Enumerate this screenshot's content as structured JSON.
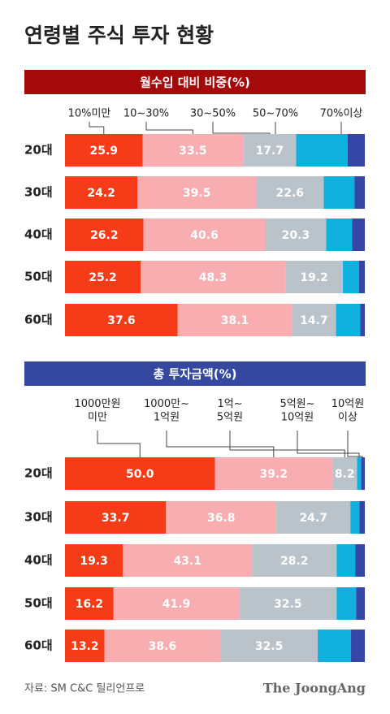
{
  "title": "연령별 주식 투자 현황",
  "source": "자료: SM C&C 틸리언프로",
  "brand": "The JoongAng",
  "chart_data": [
    {
      "type": "bar",
      "orientation": "horizontal",
      "stacked": true,
      "title": "월수입 대비 비중(%)",
      "header_color": "#a50a0a",
      "xlim": [
        0,
        100
      ],
      "categories": [
        "20대",
        "30대",
        "40대",
        "50대",
        "60대"
      ],
      "series": [
        {
          "name": "10%미만",
          "color": "#f53b18",
          "show_labels": true,
          "values": [
            25.9,
            24.2,
            26.2,
            25.2,
            37.6
          ]
        },
        {
          "name": "10~30%",
          "color": "#f8aeb0",
          "show_labels": true,
          "values": [
            33.5,
            39.5,
            40.6,
            48.3,
            38.1
          ]
        },
        {
          "name": "30~50%",
          "color": "#b9c3c9",
          "show_labels": true,
          "values": [
            17.7,
            22.6,
            20.3,
            19.2,
            14.7
          ]
        },
        {
          "name": "50~70%",
          "color": "#0fb0de",
          "show_labels": false,
          "values": [
            17.2,
            10.3,
            8.7,
            5.4,
            8.1
          ]
        },
        {
          "name": "70%이상",
          "color": "#3546a6",
          "show_labels": false,
          "values": [
            5.7,
            3.4,
            4.2,
            1.9,
            1.5
          ]
        }
      ]
    },
    {
      "type": "bar",
      "orientation": "horizontal",
      "stacked": true,
      "title": "총 투자금액(%)",
      "header_color": "#3548a0",
      "xlim": [
        0,
        100
      ],
      "categories": [
        "20대",
        "30대",
        "40대",
        "50대",
        "60대"
      ],
      "series": [
        {
          "name": "1000만원\n미만",
          "color": "#f53b18",
          "show_labels": true,
          "values": [
            50,
            33.7,
            19.3,
            16.2,
            13.2
          ],
          "value_labels": [
            "50.0",
            "33.7",
            "19.3",
            "16.2",
            "13.2"
          ]
        },
        {
          "name": "1000만~\n1억원",
          "color": "#f8aeb0",
          "show_labels": true,
          "values": [
            39.2,
            36.8,
            43.1,
            41.9,
            38.6
          ]
        },
        {
          "name": "1억~\n5억원",
          "color": "#b9c3c9",
          "show_labels": true,
          "values": [
            8.2,
            24.7,
            28.2,
            32.5,
            32.5
          ]
        },
        {
          "name": "5억원~\n10억원",
          "color": "#0fb0de",
          "show_labels": false,
          "values": [
            1.4,
            3.0,
            6.2,
            6.5,
            11.1
          ]
        },
        {
          "name": "10억원\n이상",
          "color": "#3546a6",
          "show_labels": false,
          "values": [
            1.2,
            1.8,
            3.2,
            2.9,
            4.6
          ]
        }
      ]
    }
  ]
}
